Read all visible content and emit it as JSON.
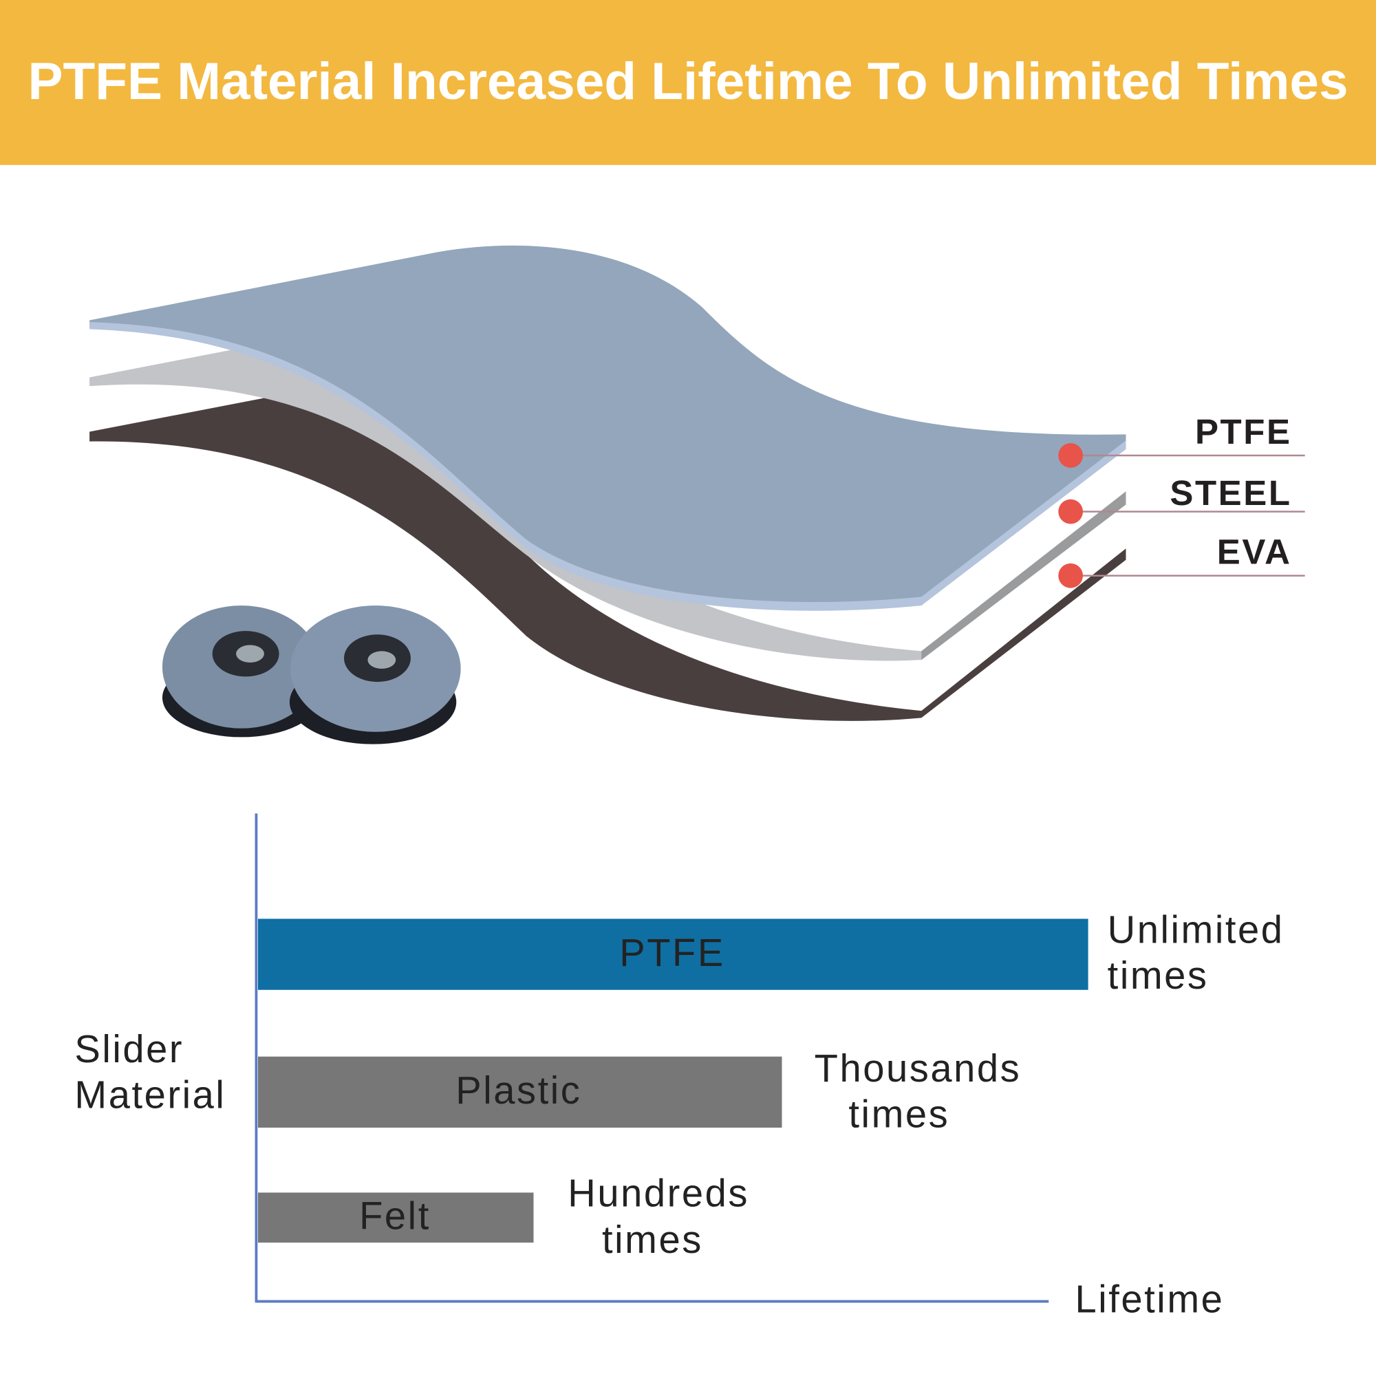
{
  "header": {
    "title": "PTFE Material Increased Lifetime To Unlimited Times"
  },
  "layers": [
    {
      "label": "PTFE"
    },
    {
      "label": "STEEL"
    },
    {
      "label": "EVA"
    }
  ],
  "chart": {
    "y_axis_label": [
      "Slider",
      "Material"
    ],
    "x_axis_label": "Lifetime",
    "bars": [
      {
        "label": "PTFE",
        "lifetime": [
          "Unlimited",
          "times"
        ]
      },
      {
        "label": "Plastic",
        "lifetime": [
          "Thousands",
          "times"
        ]
      },
      {
        "label": "Felt",
        "lifetime": [
          "Hundreds",
          "times"
        ]
      }
    ]
  }
}
